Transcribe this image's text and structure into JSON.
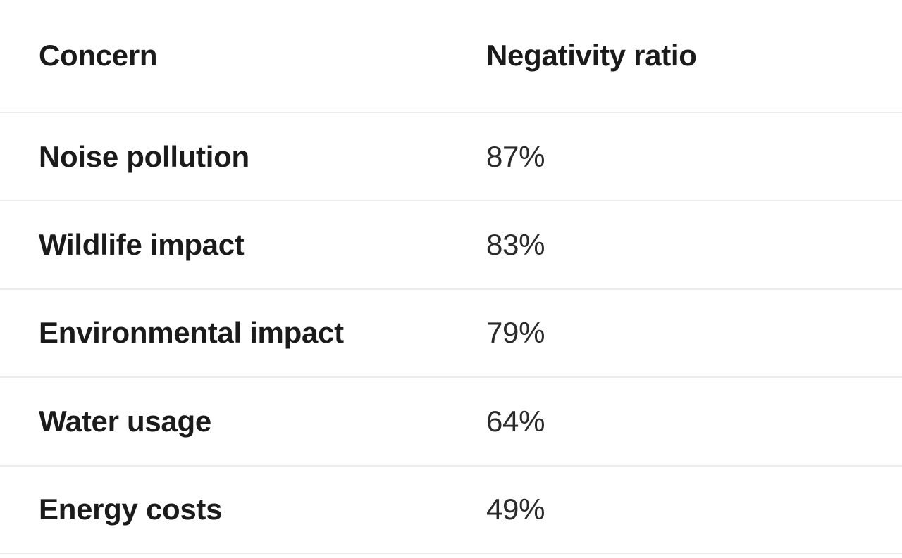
{
  "table": {
    "columns": [
      "Concern",
      "Negativity ratio"
    ],
    "rows": [
      {
        "concern": "Noise pollution",
        "ratio": "87%"
      },
      {
        "concern": "Wildlife impact",
        "ratio": "83%"
      },
      {
        "concern": "Environmental impact",
        "ratio": "79%"
      },
      {
        "concern": "Water usage",
        "ratio": "64%"
      },
      {
        "concern": "Energy costs",
        "ratio": "49%"
      }
    ],
    "colors": {
      "header_text": "#1b1b1b",
      "label_text": "#1b1b1b",
      "value_text": "#2b2b2b",
      "divider": "#ededed",
      "background": "#ffffff"
    }
  }
}
